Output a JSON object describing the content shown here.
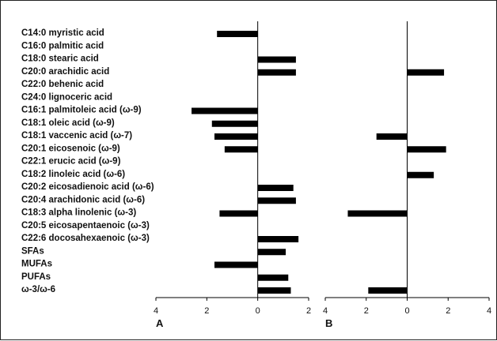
{
  "chart_data": {
    "type": "bar",
    "orientation": "horizontal",
    "categories": [
      "C14:0 myristic acid",
      "C16:0 palmitic acid",
      "C18:0 stearic acid",
      "C20:0 arachidic acid",
      "C22:0 behenic acid",
      "C24:0 lignoceric acid",
      "C16:1 palmitoleic acid (ω-9)",
      "C18:1 oleic acid (ω-9)",
      "C18:1 vaccenic acid (ω-7)",
      "C20:1 eicosenoic  (ω-9)",
      "C22:1 erucic acid (ω-9)",
      "C18:2 linoleic acid (ω-6)",
      "C20:2 eicosadienoic acid (ω-6)",
      "C20:4 arachidonic acid (ω-6)",
      "C18:3 alpha linolenic (ω-3)",
      "C20:5 eicosapentaenoic (ω-3)",
      "C22:6 docosahexaenoic (ω-3)",
      "SFAs",
      "MUFAs",
      "PUFAs",
      "ω-3/ω-6"
    ],
    "panels": [
      {
        "label": "A",
        "xlim": [
          -4,
          2
        ],
        "tick_values": [
          -4,
          -2,
          0,
          2
        ],
        "tick_labels": [
          "4",
          "2",
          "0",
          "2"
        ],
        "values": [
          -1.6,
          0,
          1.5,
          1.5,
          0,
          0,
          -2.6,
          -1.8,
          -1.7,
          -1.3,
          0,
          0,
          1.4,
          1.5,
          -1.5,
          0,
          1.6,
          1.1,
          -1.7,
          1.2,
          1.3
        ]
      },
      {
        "label": "B",
        "xlim": [
          -4,
          4
        ],
        "tick_values": [
          -4,
          -2,
          0,
          2,
          4
        ],
        "tick_labels": [
          "4",
          "2",
          "0",
          "2",
          "4"
        ],
        "values": [
          0,
          0,
          0,
          1.8,
          0,
          0,
          0,
          0,
          -1.5,
          1.9,
          0,
          1.3,
          0,
          0,
          -2.9,
          0,
          0,
          0,
          0,
          0,
          -1.9
        ]
      }
    ],
    "bar_color": "#000000"
  }
}
